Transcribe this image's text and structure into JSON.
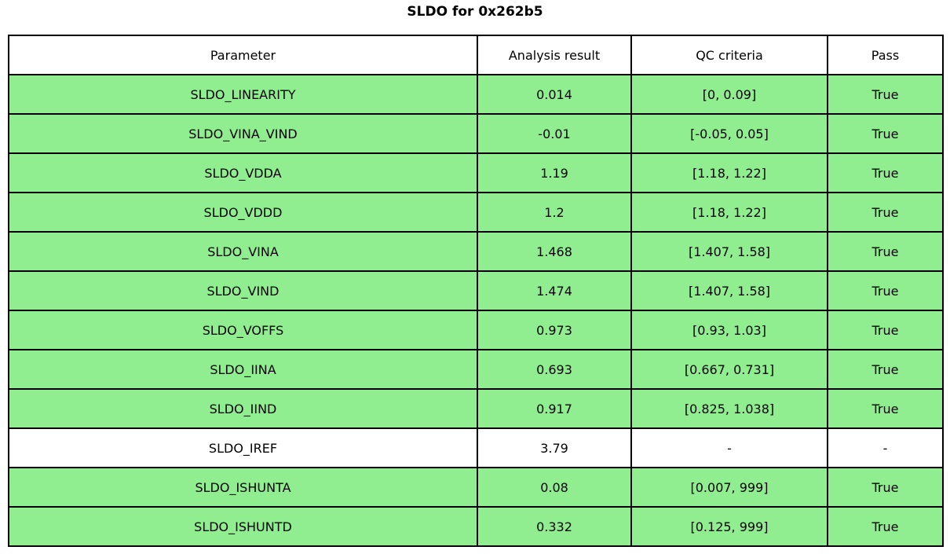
{
  "title": "SLDO for 0x262b5",
  "colors": {
    "pass_row_bg": "#90EE90",
    "neutral_row_bg": "#FFFFFF",
    "border": "#000000",
    "text": "#000000",
    "page_bg": "#FFFFFF"
  },
  "table": {
    "headers": [
      "Parameter",
      "Analysis result",
      "QC criteria",
      "Pass"
    ],
    "rows": [
      {
        "parameter": "SLDO_LINEARITY",
        "result": "0.014",
        "criteria": "[0, 0.09]",
        "pass": "True",
        "highlighted": true
      },
      {
        "parameter": "SLDO_VINA_VIND",
        "result": "-0.01",
        "criteria": "[-0.05, 0.05]",
        "pass": "True",
        "highlighted": true
      },
      {
        "parameter": "SLDO_VDDA",
        "result": "1.19",
        "criteria": "[1.18, 1.22]",
        "pass": "True",
        "highlighted": true
      },
      {
        "parameter": "SLDO_VDDD",
        "result": "1.2",
        "criteria": "[1.18, 1.22]",
        "pass": "True",
        "highlighted": true
      },
      {
        "parameter": "SLDO_VINA",
        "result": "1.468",
        "criteria": "[1.407, 1.58]",
        "pass": "True",
        "highlighted": true
      },
      {
        "parameter": "SLDO_VIND",
        "result": "1.474",
        "criteria": "[1.407, 1.58]",
        "pass": "True",
        "highlighted": true
      },
      {
        "parameter": "SLDO_VOFFS",
        "result": "0.973",
        "criteria": "[0.93, 1.03]",
        "pass": "True",
        "highlighted": true
      },
      {
        "parameter": "SLDO_IINA",
        "result": "0.693",
        "criteria": "[0.667, 0.731]",
        "pass": "True",
        "highlighted": true
      },
      {
        "parameter": "SLDO_IIND",
        "result": "0.917",
        "criteria": "[0.825, 1.038]",
        "pass": "True",
        "highlighted": true
      },
      {
        "parameter": "SLDO_IREF",
        "result": "3.79",
        "criteria": "-",
        "pass": "-",
        "highlighted": false
      },
      {
        "parameter": "SLDO_ISHUNTA",
        "result": "0.08",
        "criteria": "[0.007, 999]",
        "pass": "True",
        "highlighted": true
      },
      {
        "parameter": "SLDO_ISHUNTD",
        "result": "0.332",
        "criteria": "[0.125, 999]",
        "pass": "True",
        "highlighted": true
      }
    ]
  },
  "chart_data": {
    "type": "table",
    "title": "SLDO for 0x262b5",
    "columns": [
      "Parameter",
      "Analysis result",
      "QC criteria",
      "Pass"
    ],
    "rows": [
      [
        "SLDO_LINEARITY",
        "0.014",
        "[0, 0.09]",
        "True"
      ],
      [
        "SLDO_VINA_VIND",
        "-0.01",
        "[-0.05, 0.05]",
        "True"
      ],
      [
        "SLDO_VDDA",
        "1.19",
        "[1.18, 1.22]",
        "True"
      ],
      [
        "SLDO_VDDD",
        "1.2",
        "[1.18, 1.22]",
        "True"
      ],
      [
        "SLDO_VINA",
        "1.468",
        "[1.407, 1.58]",
        "True"
      ],
      [
        "SLDO_VIND",
        "1.474",
        "[1.407, 1.58]",
        "True"
      ],
      [
        "SLDO_VOFFS",
        "0.973",
        "[0.93, 1.03]",
        "True"
      ],
      [
        "SLDO_IINA",
        "0.693",
        "[0.667, 0.731]",
        "True"
      ],
      [
        "SLDO_IIND",
        "0.917",
        "[0.825, 1.038]",
        "True"
      ],
      [
        "SLDO_IREF",
        "3.79",
        "-",
        "-"
      ],
      [
        "SLDO_ISHUNTA",
        "0.08",
        "[0.007, 999]",
        "True"
      ],
      [
        "SLDO_ISHUNTD",
        "0.332",
        "[0.125, 999]",
        "True"
      ]
    ],
    "row_highlighted": [
      true,
      true,
      true,
      true,
      true,
      true,
      true,
      true,
      true,
      false,
      true,
      true
    ],
    "legend_position": "none",
    "grid": true
  }
}
